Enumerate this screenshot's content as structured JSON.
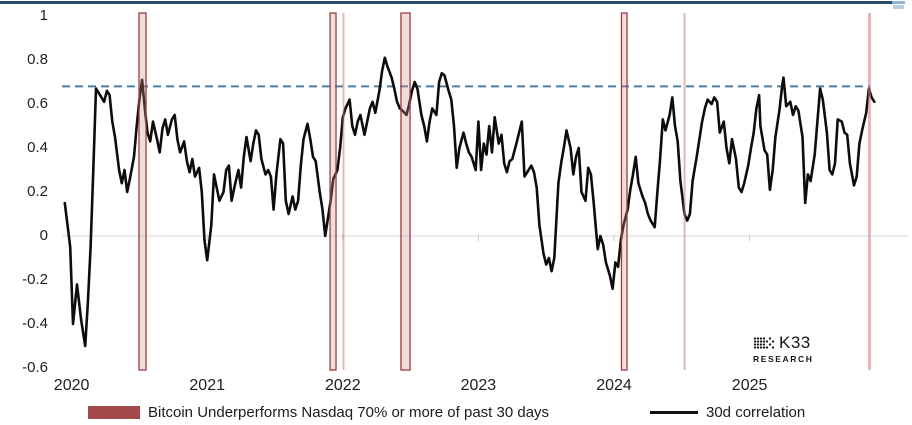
{
  "branding": {
    "name": "K33",
    "sub": "RESEARCH"
  },
  "legend": {
    "band_label": "Bitcoin Underperforms Nasdaq 70% or more of past 30 days",
    "line_label": "30d correlation"
  },
  "colors": {
    "top_border": "#2c4b63",
    "top_accent": "#8fb6d4",
    "reference_dashed": "#4d7ca3",
    "zero_gridline": "#e3e5e6",
    "year_tick": "#c9cccd",
    "band_strong_edge": "#993f42",
    "band_strong_fill": "rgba(210,140,142,0.30)",
    "band_soft_fill": "rgba(203,125,127,0.55)",
    "series_line": "#0d0d0d",
    "legend_swatch": "#a3484b"
  },
  "chart_data": {
    "type": "line",
    "title": "",
    "xlabel": "",
    "ylabel": "",
    "grid": "zero-line-only",
    "legend_position": "bottom",
    "xlim": [
      2019.9,
      2026.2
    ],
    "ylim": [
      -0.6,
      1.05
    ],
    "x_tick_years": [
      "2020",
      "2021",
      "2022",
      "2023",
      "2024",
      "2025"
    ],
    "y_ticks": [
      {
        "v": 1.0,
        "label": "1"
      },
      {
        "v": 0.8,
        "label": "0.8"
      },
      {
        "v": 0.6,
        "label": "0.6"
      },
      {
        "v": 0.4,
        "label": "0.4"
      },
      {
        "v": 0.2,
        "label": "0.2"
      },
      {
        "v": 0.0,
        "label": "0"
      },
      {
        "v": -0.2,
        "label": "-0.2"
      },
      {
        "v": -0.4,
        "label": "-0.4"
      },
      {
        "v": -0.6,
        "label": "-0.6"
      }
    ],
    "reference_line": {
      "value": 0.68,
      "style": "dashed",
      "extent_end_year": 2025.89
    },
    "zero_line": {
      "value": 0
    },
    "underperformance_bands": [
      {
        "start": 2020.497,
        "end": 2020.549,
        "intensity": "strong"
      },
      {
        "start": 2021.906,
        "end": 2021.95,
        "intensity": "strong"
      },
      {
        "start": 2021.998,
        "end": 2022.009,
        "intensity": "soft"
      },
      {
        "start": 2022.429,
        "end": 2022.496,
        "intensity": "strong"
      },
      {
        "start": 2024.055,
        "end": 2024.096,
        "intensity": "strong"
      },
      {
        "start": 2024.513,
        "end": 2024.527,
        "intensity": "soft"
      },
      {
        "start": 2025.873,
        "end": 2025.895,
        "intensity": "soft"
      }
    ],
    "series": [
      {
        "name": "30d correlation",
        "points": [
          [
            2019.95,
            0.15
          ],
          [
            2019.99,
            -0.05
          ],
          [
            2020.01,
            -0.4
          ],
          [
            2020.04,
            -0.22
          ],
          [
            2020.07,
            -0.38
          ],
          [
            2020.1,
            -0.5
          ],
          [
            2020.12,
            -0.3
          ],
          [
            2020.14,
            -0.05
          ],
          [
            2020.16,
            0.3
          ],
          [
            2020.18,
            0.67
          ],
          [
            2020.21,
            0.64
          ],
          [
            2020.24,
            0.61
          ],
          [
            2020.26,
            0.66
          ],
          [
            2020.28,
            0.64
          ],
          [
            2020.3,
            0.52
          ],
          [
            2020.32,
            0.45
          ],
          [
            2020.35,
            0.3
          ],
          [
            2020.37,
            0.24
          ],
          [
            2020.39,
            0.3
          ],
          [
            2020.41,
            0.2
          ],
          [
            2020.43,
            0.26
          ],
          [
            2020.46,
            0.36
          ],
          [
            2020.48,
            0.5
          ],
          [
            2020.5,
            0.62
          ],
          [
            2020.52,
            0.71
          ],
          [
            2020.54,
            0.58
          ],
          [
            2020.56,
            0.47
          ],
          [
            2020.58,
            0.43
          ],
          [
            2020.6,
            0.52
          ],
          [
            2020.63,
            0.44
          ],
          [
            2020.65,
            0.38
          ],
          [
            2020.67,
            0.49
          ],
          [
            2020.69,
            0.53
          ],
          [
            2020.71,
            0.46
          ],
          [
            2020.74,
            0.53
          ],
          [
            2020.76,
            0.55
          ],
          [
            2020.78,
            0.44
          ],
          [
            2020.8,
            0.38
          ],
          [
            2020.83,
            0.43
          ],
          [
            2020.85,
            0.34
          ],
          [
            2020.87,
            0.29
          ],
          [
            2020.89,
            0.35
          ],
          [
            2020.91,
            0.27
          ],
          [
            2020.94,
            0.31
          ],
          [
            2020.96,
            0.2
          ],
          [
            2020.98,
            -0.02
          ],
          [
            2021.0,
            -0.11
          ],
          [
            2021.03,
            0.05
          ],
          [
            2021.05,
            0.28
          ],
          [
            2021.07,
            0.22
          ],
          [
            2021.09,
            0.16
          ],
          [
            2021.12,
            0.2
          ],
          [
            2021.14,
            0.3
          ],
          [
            2021.16,
            0.32
          ],
          [
            2021.18,
            0.16
          ],
          [
            2021.2,
            0.22
          ],
          [
            2021.23,
            0.3
          ],
          [
            2021.25,
            0.22
          ],
          [
            2021.27,
            0.36
          ],
          [
            2021.29,
            0.45
          ],
          [
            2021.32,
            0.34
          ],
          [
            2021.34,
            0.42
          ],
          [
            2021.36,
            0.48
          ],
          [
            2021.38,
            0.46
          ],
          [
            2021.4,
            0.35
          ],
          [
            2021.43,
            0.28
          ],
          [
            2021.45,
            0.3
          ],
          [
            2021.47,
            0.27
          ],
          [
            2021.49,
            0.12
          ],
          [
            2021.51,
            0.28
          ],
          [
            2021.54,
            0.44
          ],
          [
            2021.56,
            0.42
          ],
          [
            2021.58,
            0.16
          ],
          [
            2021.6,
            0.1
          ],
          [
            2021.63,
            0.18
          ],
          [
            2021.65,
            0.12
          ],
          [
            2021.67,
            0.16
          ],
          [
            2021.69,
            0.32
          ],
          [
            2021.71,
            0.44
          ],
          [
            2021.74,
            0.51
          ],
          [
            2021.76,
            0.44
          ],
          [
            2021.78,
            0.36
          ],
          [
            2021.8,
            0.34
          ],
          [
            2021.83,
            0.2
          ],
          [
            2021.85,
            0.12
          ],
          [
            2021.87,
            0.0
          ],
          [
            2021.89,
            0.08
          ],
          [
            2021.91,
            0.16
          ],
          [
            2021.93,
            0.26
          ],
          [
            2021.96,
            0.3
          ],
          [
            2021.98,
            0.4
          ],
          [
            2022.0,
            0.54
          ],
          [
            2022.02,
            0.58
          ],
          [
            2022.05,
            0.62
          ],
          [
            2022.07,
            0.5
          ],
          [
            2022.09,
            0.46
          ],
          [
            2022.11,
            0.52
          ],
          [
            2022.13,
            0.55
          ],
          [
            2022.16,
            0.46
          ],
          [
            2022.18,
            0.52
          ],
          [
            2022.2,
            0.58
          ],
          [
            2022.22,
            0.61
          ],
          [
            2022.24,
            0.56
          ],
          [
            2022.27,
            0.66
          ],
          [
            2022.29,
            0.75
          ],
          [
            2022.31,
            0.81
          ],
          [
            2022.33,
            0.77
          ],
          [
            2022.36,
            0.72
          ],
          [
            2022.38,
            0.67
          ],
          [
            2022.4,
            0.61
          ],
          [
            2022.42,
            0.58
          ],
          [
            2022.44,
            0.57
          ],
          [
            2022.47,
            0.55
          ],
          [
            2022.49,
            0.6
          ],
          [
            2022.51,
            0.66
          ],
          [
            2022.53,
            0.7
          ],
          [
            2022.55,
            0.67
          ],
          [
            2022.58,
            0.55
          ],
          [
            2022.6,
            0.5
          ],
          [
            2022.62,
            0.43
          ],
          [
            2022.64,
            0.52
          ],
          [
            2022.66,
            0.58
          ],
          [
            2022.69,
            0.55
          ],
          [
            2022.71,
            0.7
          ],
          [
            2022.73,
            0.74
          ],
          [
            2022.75,
            0.73
          ],
          [
            2022.78,
            0.66
          ],
          [
            2022.8,
            0.62
          ],
          [
            2022.82,
            0.5
          ],
          [
            2022.84,
            0.31
          ],
          [
            2022.86,
            0.4
          ],
          [
            2022.89,
            0.47
          ],
          [
            2022.91,
            0.42
          ],
          [
            2022.93,
            0.38
          ],
          [
            2022.95,
            0.36
          ],
          [
            2022.98,
            0.3
          ],
          [
            2023.0,
            0.52
          ],
          [
            2023.02,
            0.3
          ],
          [
            2023.04,
            0.42
          ],
          [
            2023.06,
            0.37
          ],
          [
            2023.08,
            0.5
          ],
          [
            2023.1,
            0.38
          ],
          [
            2023.12,
            0.54
          ],
          [
            2023.15,
            0.42
          ],
          [
            2023.17,
            0.46
          ],
          [
            2023.19,
            0.33
          ],
          [
            2023.21,
            0.29
          ],
          [
            2023.23,
            0.34
          ],
          [
            2023.25,
            0.35
          ],
          [
            2023.28,
            0.42
          ],
          [
            2023.3,
            0.47
          ],
          [
            2023.32,
            0.52
          ],
          [
            2023.34,
            0.27
          ],
          [
            2023.37,
            0.3
          ],
          [
            2023.39,
            0.32
          ],
          [
            2023.41,
            0.29
          ],
          [
            2023.43,
            0.22
          ],
          [
            2023.45,
            0.05
          ],
          [
            2023.48,
            -0.08
          ],
          [
            2023.5,
            -0.13
          ],
          [
            2023.52,
            -0.1
          ],
          [
            2023.54,
            -0.16
          ],
          [
            2023.56,
            -0.1
          ],
          [
            2023.59,
            0.24
          ],
          [
            2023.61,
            0.33
          ],
          [
            2023.63,
            0.4
          ],
          [
            2023.65,
            0.48
          ],
          [
            2023.68,
            0.4
          ],
          [
            2023.7,
            0.28
          ],
          [
            2023.72,
            0.36
          ],
          [
            2023.74,
            0.4
          ],
          [
            2023.76,
            0.2
          ],
          [
            2023.79,
            0.16
          ],
          [
            2023.81,
            0.31
          ],
          [
            2023.83,
            0.28
          ],
          [
            2023.85,
            0.15
          ],
          [
            2023.88,
            -0.06
          ],
          [
            2023.9,
            0.0
          ],
          [
            2023.92,
            -0.04
          ],
          [
            2023.94,
            -0.12
          ],
          [
            2023.97,
            -0.18
          ],
          [
            2023.99,
            -0.24
          ],
          [
            2024.01,
            -0.12
          ],
          [
            2024.03,
            -0.14
          ],
          [
            2024.05,
            -0.02
          ],
          [
            2024.07,
            0.05
          ],
          [
            2024.1,
            0.12
          ],
          [
            2024.12,
            0.21
          ],
          [
            2024.14,
            0.28
          ],
          [
            2024.16,
            0.36
          ],
          [
            2024.18,
            0.24
          ],
          [
            2024.21,
            0.18
          ],
          [
            2024.23,
            0.15
          ],
          [
            2024.25,
            0.1
          ],
          [
            2024.27,
            0.07
          ],
          [
            2024.3,
            0.04
          ],
          [
            2024.32,
            0.2
          ],
          [
            2024.34,
            0.35
          ],
          [
            2024.36,
            0.53
          ],
          [
            2024.38,
            0.48
          ],
          [
            2024.41,
            0.55
          ],
          [
            2024.43,
            0.63
          ],
          [
            2024.45,
            0.5
          ],
          [
            2024.47,
            0.43
          ],
          [
            2024.49,
            0.25
          ],
          [
            2024.52,
            0.1
          ],
          [
            2024.54,
            0.07
          ],
          [
            2024.56,
            0.1
          ],
          [
            2024.58,
            0.25
          ],
          [
            2024.61,
            0.36
          ],
          [
            2024.63,
            0.44
          ],
          [
            2024.65,
            0.52
          ],
          [
            2024.67,
            0.58
          ],
          [
            2024.69,
            0.62
          ],
          [
            2024.72,
            0.6
          ],
          [
            2024.74,
            0.63
          ],
          [
            2024.76,
            0.61
          ],
          [
            2024.78,
            0.47
          ],
          [
            2024.81,
            0.52
          ],
          [
            2024.83,
            0.4
          ],
          [
            2024.85,
            0.33
          ],
          [
            2024.87,
            0.44
          ],
          [
            2024.9,
            0.35
          ],
          [
            2024.92,
            0.22
          ],
          [
            2024.94,
            0.2
          ],
          [
            2024.96,
            0.24
          ],
          [
            2024.99,
            0.32
          ],
          [
            2025.01,
            0.4
          ],
          [
            2025.03,
            0.47
          ],
          [
            2025.05,
            0.58
          ],
          [
            2025.07,
            0.64
          ],
          [
            2025.08,
            0.5
          ],
          [
            2025.11,
            0.39
          ],
          [
            2025.13,
            0.37
          ],
          [
            2025.15,
            0.21
          ],
          [
            2025.17,
            0.3
          ],
          [
            2025.19,
            0.45
          ],
          [
            2025.22,
            0.57
          ],
          [
            2025.24,
            0.68
          ],
          [
            2025.25,
            0.72
          ],
          [
            2025.27,
            0.59
          ],
          [
            2025.3,
            0.61
          ],
          [
            2025.32,
            0.55
          ],
          [
            2025.34,
            0.59
          ],
          [
            2025.36,
            0.57
          ],
          [
            2025.39,
            0.45
          ],
          [
            2025.41,
            0.15
          ],
          [
            2025.43,
            0.28
          ],
          [
            2025.45,
            0.25
          ],
          [
            2025.48,
            0.37
          ],
          [
            2025.5,
            0.52
          ],
          [
            2025.52,
            0.67
          ],
          [
            2025.54,
            0.62
          ],
          [
            2025.57,
            0.47
          ],
          [
            2025.59,
            0.3
          ],
          [
            2025.61,
            0.28
          ],
          [
            2025.63,
            0.33
          ],
          [
            2025.65,
            0.53
          ],
          [
            2025.68,
            0.52
          ],
          [
            2025.7,
            0.47
          ],
          [
            2025.72,
            0.46
          ],
          [
            2025.74,
            0.33
          ],
          [
            2025.77,
            0.23
          ],
          [
            2025.79,
            0.27
          ],
          [
            2025.81,
            0.42
          ],
          [
            2025.83,
            0.48
          ],
          [
            2025.86,
            0.56
          ],
          [
            2025.88,
            0.67
          ],
          [
            2025.9,
            0.63
          ],
          [
            2025.92,
            0.61
          ]
        ]
      }
    ]
  }
}
